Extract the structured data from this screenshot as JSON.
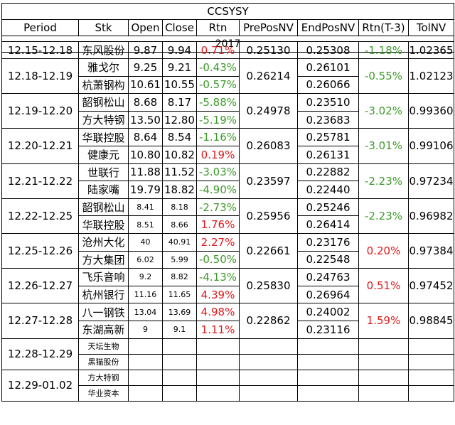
{
  "title": "CCSYSY",
  "year": "2017",
  "columns": [
    "Period",
    "Stk",
    "Open",
    "Close",
    "Rtn",
    "PrePosNV",
    "EndPosNV",
    "Rtn(T-3)",
    "TolNV"
  ],
  "partial": {
    "period": "12.15-12.18",
    "stk": "东风股份",
    "open": "9.87",
    "close": "9.94",
    "rtn": "0.71%",
    "prepos": "0.25130",
    "endpos": "0.25308",
    "rtn3": "-1.18%",
    "tol": "1.02365"
  },
  "groups": [
    {
      "period": "12.18-12.19",
      "prepos": "0.26214",
      "rtn3": "-0.55%",
      "rtn3_sign": "neg",
      "tol": "1.02123",
      "rows": [
        {
          "stk": "雅戈尔",
          "open": "9.25",
          "close": "9.21",
          "rtn": "-0.43%",
          "sign": "neg",
          "endpos": "0.26101"
        },
        {
          "stk": "杭萧钢构",
          "open": "10.61",
          "close": "10.55",
          "rtn": "-0.57%",
          "sign": "neg",
          "endpos": "0.26066"
        }
      ]
    },
    {
      "period": "12.19-12.20",
      "prepos": "0.24978",
      "rtn3": "-3.02%",
      "rtn3_sign": "neg",
      "tol": "0.99360",
      "rows": [
        {
          "stk": "韶钢松山",
          "open": "8.68",
          "close": "8.17",
          "rtn": "-5.88%",
          "sign": "neg",
          "endpos": "0.23510"
        },
        {
          "stk": "方大特钢",
          "open": "13.50",
          "close": "12.80",
          "rtn": "-5.19%",
          "sign": "neg",
          "endpos": "0.23683"
        }
      ]
    },
    {
      "period": "12.20-12.21",
      "prepos": "0.26083",
      "rtn3": "-3.01%",
      "rtn3_sign": "neg",
      "tol": "0.99106",
      "rows": [
        {
          "stk": "华联控股",
          "open": "8.64",
          "close": "8.54",
          "rtn": "-1.16%",
          "sign": "neg",
          "endpos": "0.25781"
        },
        {
          "stk": "健康元",
          "open": "10.80",
          "close": "10.82",
          "rtn": "0.19%",
          "sign": "pos",
          "endpos": "0.26131"
        }
      ]
    },
    {
      "period": "12.21-12.22",
      "prepos": "0.23597",
      "rtn3": "-2.23%",
      "rtn3_sign": "neg",
      "tol": "0.97234",
      "rows": [
        {
          "stk": "世联行",
          "open": "11.88",
          "close": "11.52",
          "rtn": "-3.03%",
          "sign": "neg",
          "endpos": "0.22882"
        },
        {
          "stk": "陆家嘴",
          "open": "19.79",
          "close": "18.82",
          "rtn": "-4.90%",
          "sign": "neg",
          "endpos": "0.22440"
        }
      ]
    },
    {
      "period": "12.22-12.25",
      "prepos": "0.25956",
      "rtn3": "-2.23%",
      "rtn3_sign": "neg",
      "tol": "0.96982",
      "rows": [
        {
          "stk": "韶钢松山",
          "open": "8.41",
          "close": "8.18",
          "rtn": "-2.73%",
          "sign": "neg",
          "endpos": "0.25246",
          "small": true
        },
        {
          "stk": "华联控股",
          "open": "8.51",
          "close": "8.66",
          "rtn": "1.76%",
          "sign": "pos",
          "endpos": "0.26414",
          "small": true
        }
      ]
    },
    {
      "period": "12.25-12.26",
      "prepos": "0.22661",
      "rtn3": "0.20%",
      "rtn3_sign": "pos",
      "tol": "0.97384",
      "rows": [
        {
          "stk": "沧州大化",
          "open": "40",
          "close": "40.91",
          "rtn": "2.27%",
          "sign": "pos",
          "endpos": "0.23176",
          "small": true
        },
        {
          "stk": "方大集团",
          "open": "6.02",
          "close": "5.99",
          "rtn": "-0.50%",
          "sign": "neg",
          "endpos": "0.22548",
          "small": true
        }
      ]
    },
    {
      "period": "12.26-12.27",
      "prepos": "0.25830",
      "rtn3": "0.51%",
      "rtn3_sign": "pos",
      "tol": "0.97452",
      "rows": [
        {
          "stk": "飞乐音响",
          "open": "9.2",
          "close": "8.82",
          "rtn": "-4.13%",
          "sign": "neg",
          "endpos": "0.24763",
          "small": true
        },
        {
          "stk": "杭州银行",
          "open": "11.16",
          "close": "11.65",
          "rtn": "4.39%",
          "sign": "pos",
          "endpos": "0.26964",
          "small": true
        }
      ]
    },
    {
      "period": "12.27-12.28",
      "prepos": "0.22862",
      "rtn3": "1.59%",
      "rtn3_sign": "pos",
      "tol": "0.98845",
      "rows": [
        {
          "stk": "八一钢铁",
          "open": "13.04",
          "close": "13.69",
          "rtn": "4.98%",
          "sign": "pos",
          "endpos": "0.24002",
          "small": true
        },
        {
          "stk": "东湖高新",
          "open": "9",
          "close": "9.1",
          "rtn": "1.11%",
          "sign": "pos",
          "endpos": "0.23116",
          "small": true
        }
      ]
    }
  ],
  "pending": [
    {
      "period": "12.28-12.29",
      "stocks": [
        "天坛生物",
        "黑猫股份"
      ]
    },
    {
      "period": "12.29-01.02",
      "stocks": [
        "方大特钢",
        "华业资本"
      ]
    }
  ]
}
